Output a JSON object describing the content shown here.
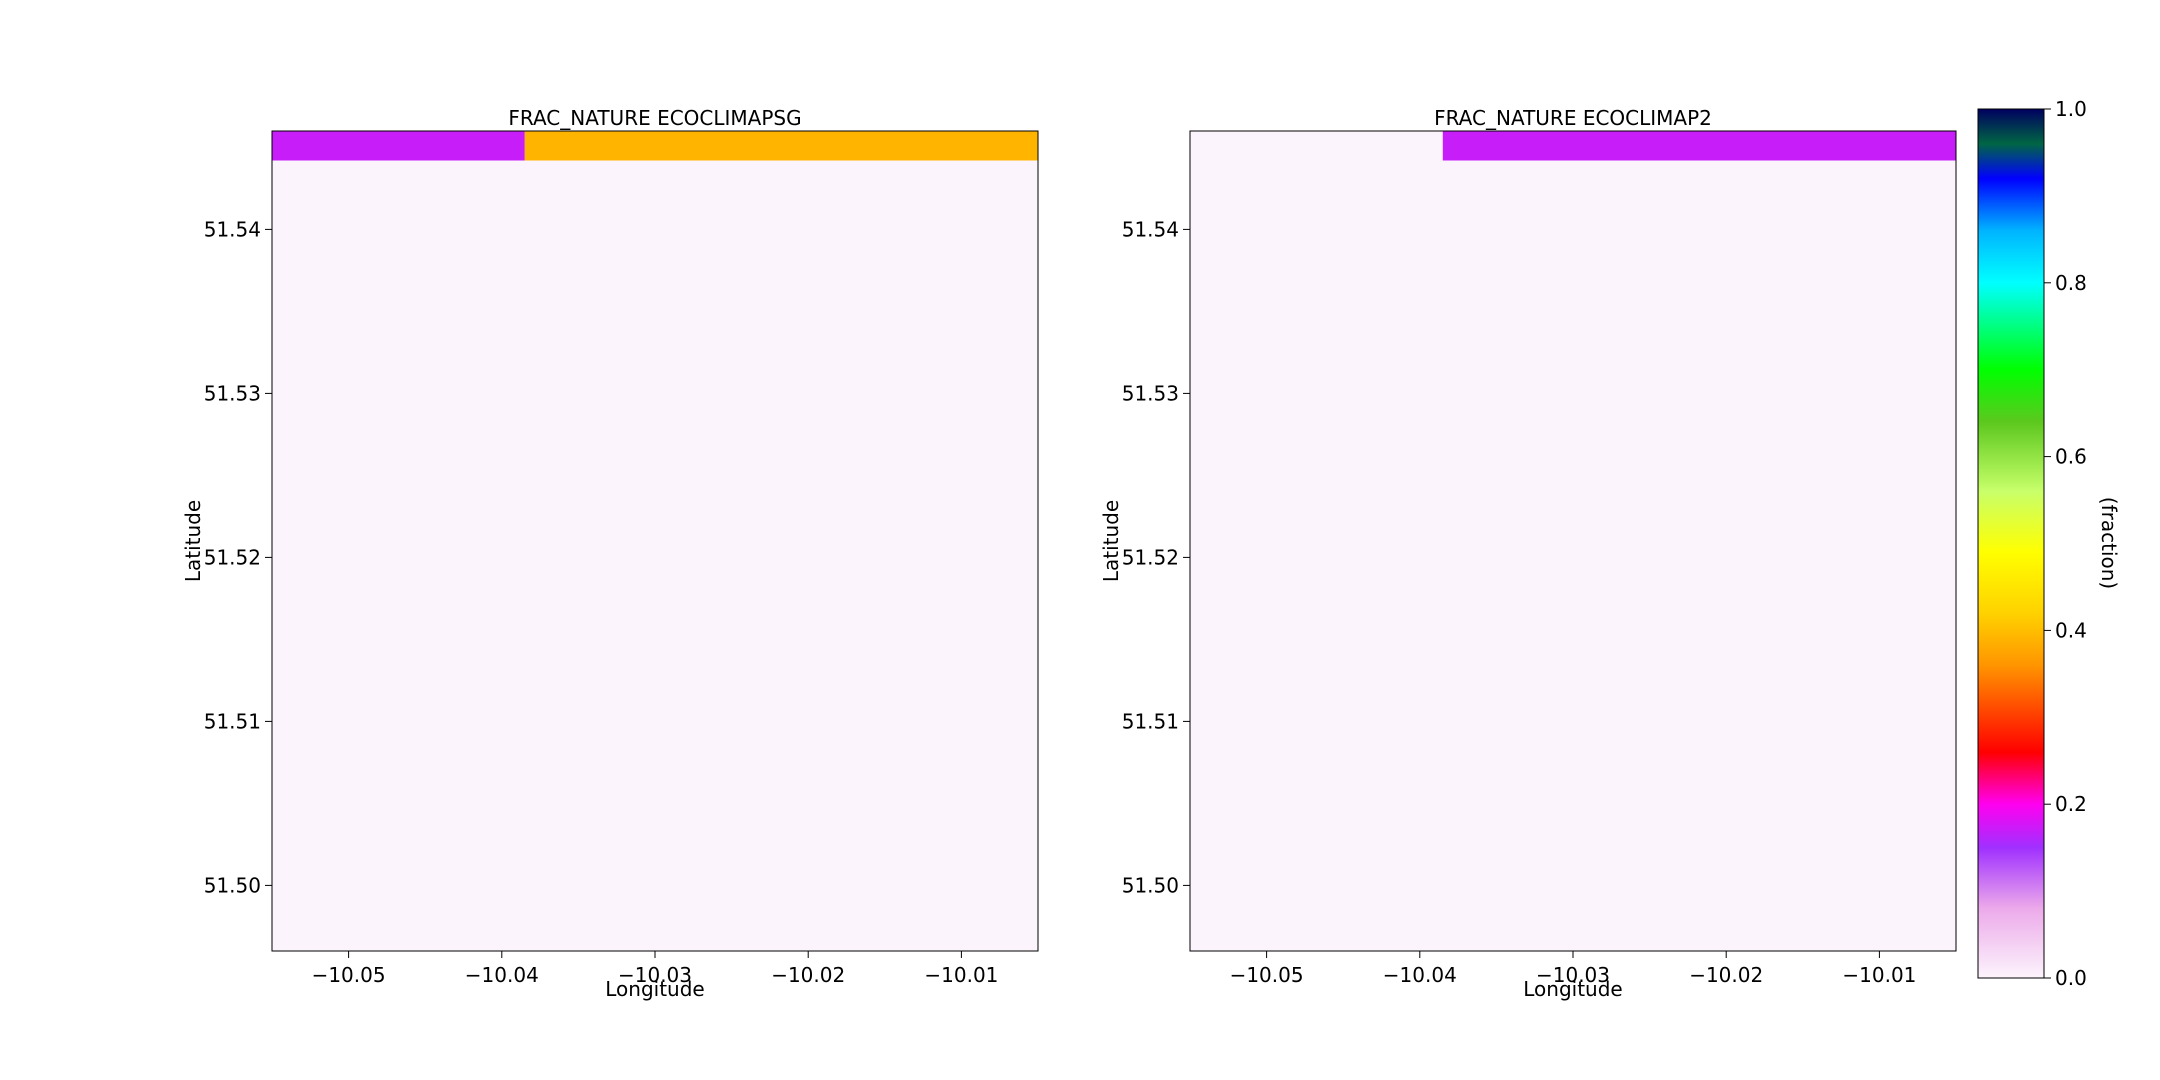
{
  "chart_data": [
    {
      "type": "heatmap",
      "title": "FRAC_NATURE ECOCLIMAPSG",
      "xlabel": "Longitude",
      "ylabel": "Latitude",
      "xlim": [
        -10.055,
        -10.005
      ],
      "ylim": [
        51.496,
        51.546
      ],
      "xticks": [
        -10.05,
        -10.04,
        -10.03,
        -10.02,
        -10.01
      ],
      "xtick_labels": [
        "−10.05",
        "−10.04",
        "−10.03",
        "−10.02",
        "−10.01"
      ],
      "yticks": [
        51.5,
        51.51,
        51.52,
        51.53,
        51.54
      ],
      "ytick_labels": [
        "51.50",
        "51.51",
        "51.52",
        "51.53",
        "51.54"
      ],
      "cells": [
        {
          "x0": -10.055,
          "x1": -10.0385,
          "y0": 51.5442,
          "y1": 51.546,
          "value": 0.17
        },
        {
          "x0": -10.0385,
          "x1": -10.005,
          "y0": 51.5442,
          "y1": 51.546,
          "value": 0.39
        },
        {
          "x0": -10.055,
          "x1": -10.005,
          "y0": 51.496,
          "y1": 51.5442,
          "value": 0.0
        }
      ]
    },
    {
      "type": "heatmap",
      "title": "FRAC_NATURE ECOCLIMAP2",
      "xlabel": "Longitude",
      "ylabel": "Latitude",
      "xlim": [
        -10.055,
        -10.005
      ],
      "ylim": [
        51.496,
        51.546
      ],
      "xticks": [
        -10.05,
        -10.04,
        -10.03,
        -10.02,
        -10.01
      ],
      "xtick_labels": [
        "−10.05",
        "−10.04",
        "−10.03",
        "−10.02",
        "−10.01"
      ],
      "yticks": [
        51.5,
        51.51,
        51.52,
        51.53,
        51.54
      ],
      "ytick_labels": [
        "51.50",
        "51.51",
        "51.52",
        "51.53",
        "51.54"
      ],
      "cells": [
        {
          "x0": -10.055,
          "x1": -10.0385,
          "y0": 51.5442,
          "y1": 51.546,
          "value": 0.0
        },
        {
          "x0": -10.0385,
          "x1": -10.005,
          "y0": 51.5442,
          "y1": 51.546,
          "value": 0.17
        },
        {
          "x0": -10.055,
          "x1": -10.005,
          "y0": 51.496,
          "y1": 51.5442,
          "value": 0.0
        }
      ]
    }
  ],
  "colorbar": {
    "label": "(fraction)",
    "range": [
      0.0,
      1.0
    ],
    "ticks": [
      0.0,
      0.2,
      0.4,
      0.6,
      0.8,
      1.0
    ],
    "tick_labels": [
      "0.0",
      "0.2",
      "0.4",
      "0.6",
      "0.8",
      "1.0"
    ],
    "colormap": [
      {
        "v": 0.0,
        "c": "#fcf4fc"
      },
      {
        "v": 0.08,
        "c": "#ecaaea"
      },
      {
        "v": 0.15,
        "c": "#a030ff"
      },
      {
        "v": 0.2,
        "c": "#ff00f0"
      },
      {
        "v": 0.26,
        "c": "#ff0000"
      },
      {
        "v": 0.36,
        "c": "#ff9500"
      },
      {
        "v": 0.42,
        "c": "#ffd200"
      },
      {
        "v": 0.49,
        "c": "#ffff00"
      },
      {
        "v": 0.56,
        "c": "#c8ff6a"
      },
      {
        "v": 0.64,
        "c": "#5cc81e"
      },
      {
        "v": 0.7,
        "c": "#00ff00"
      },
      {
        "v": 0.8,
        "c": "#00ffff"
      },
      {
        "v": 0.86,
        "c": "#00b4ff"
      },
      {
        "v": 0.92,
        "c": "#0000ff"
      },
      {
        "v": 0.96,
        "c": "#006644"
      },
      {
        "v": 1.0,
        "c": "#000060"
      }
    ]
  }
}
